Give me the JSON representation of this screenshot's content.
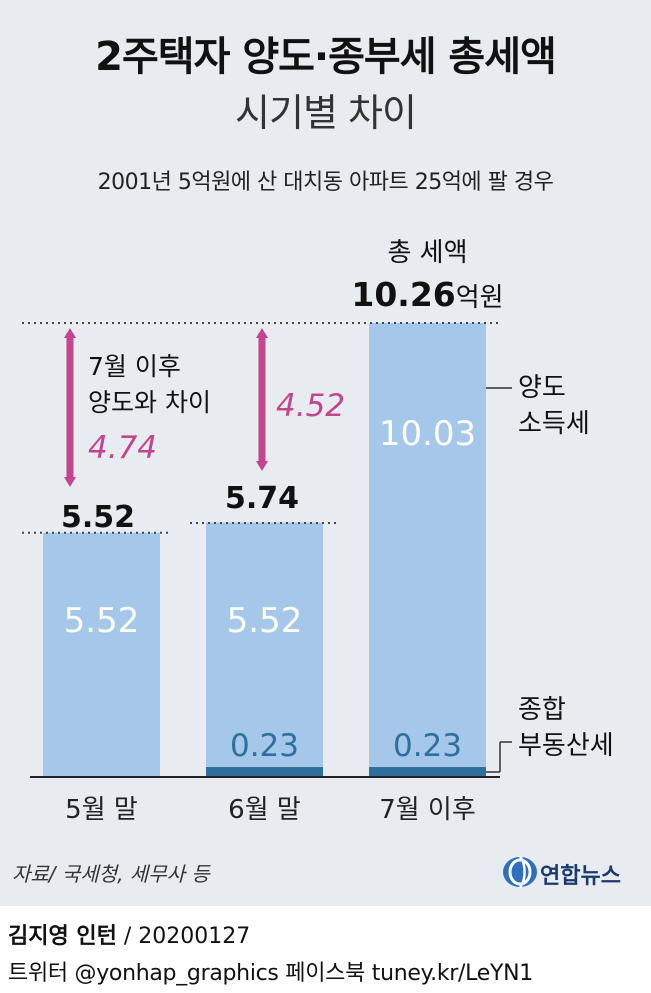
{
  "title": "2주택자 양도·종부세 총세액",
  "subtitle": "시기별 차이",
  "note": "2001년 5억원에 산 대치동 아파트 25억에 팔 경우",
  "source": "자료/ 국세청, 세무사 등",
  "logo_text": "연합뉴스",
  "credit": {
    "author": "김지영 인턴",
    "sep": " / ",
    "date": "20200127"
  },
  "sns": "트위터 @yonhap_graphics  페이스북 tuney.kr/LeYN1",
  "colors": {
    "capital_gains_tax": "#a5c8ea",
    "comprehensive_real_estate_tax": "#2e6f9e",
    "difference": "#c2468e",
    "panel": "#e8ebf0"
  },
  "chart_data": {
    "type": "bar",
    "stacked": true,
    "categories": [
      "5월 말",
      "6월 말",
      "7월 이후"
    ],
    "series": [
      {
        "name": "양도 소득세",
        "values": [
          5.52,
          5.52,
          10.03
        ],
        "labels": [
          "5.52",
          "5.52",
          "10.03"
        ]
      },
      {
        "name": "종합 부동산세",
        "values": [
          0,
          0.23,
          0.23
        ],
        "labels": [
          "",
          "0.23",
          "0.23"
        ]
      }
    ],
    "totals": [
      5.52,
      5.74,
      10.26
    ],
    "total_labels": [
      "5.52",
      "5.74",
      "10.26"
    ],
    "total_title": "총 세액",
    "total_unit": "억원",
    "differences": [
      {
        "category": "5월 말",
        "value": 4.74,
        "label": "4.74",
        "note_lines": [
          "7월 이후",
          "양도와 차이"
        ]
      },
      {
        "category": "6월 말",
        "value": 4.52,
        "label": "4.52",
        "note_lines": []
      }
    ],
    "legend": [
      "양도 소득세",
      "종합 부동산세"
    ],
    "legend_labels": [
      [
        "양도",
        "소득세"
      ],
      [
        "종합",
        "부동산세"
      ]
    ],
    "ylim": [
      0,
      10.26
    ],
    "grid": false
  }
}
